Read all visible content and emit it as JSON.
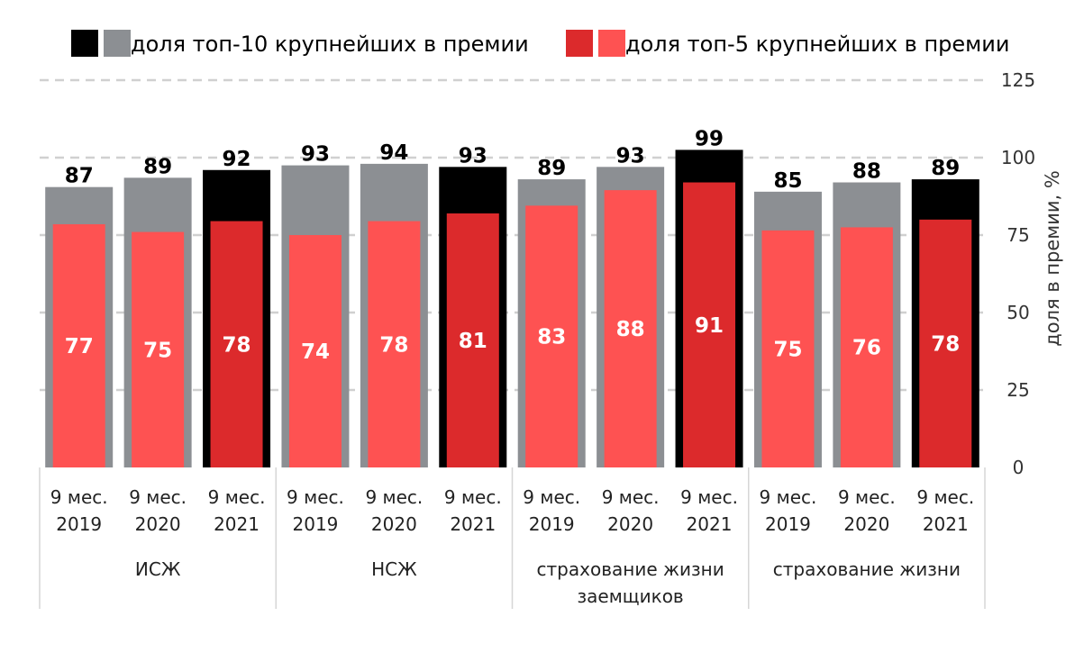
{
  "chart_data": {
    "type": "bar",
    "title": "",
    "ylabel": "доля в премии, %",
    "ylim": [
      0,
      125
    ],
    "yticks": [
      0,
      25,
      50,
      75,
      100,
      125
    ],
    "y_axis_side": "right",
    "grid": "dashed horizontal",
    "legend_position": "top",
    "legend": [
      {
        "label": "доля топ-10 крупнейших в премии",
        "colors": [
          "#000000",
          "#8c8f93"
        ]
      },
      {
        "label": "доля топ-5 крупнейших в премии",
        "colors": [
          "#dc2a2c",
          "#fe5252"
        ]
      }
    ],
    "categories": [
      {
        "group": "ИСЖ",
        "line1": "9 мес.",
        "line2": "2019",
        "highlight": false
      },
      {
        "group": "ИСЖ",
        "line1": "9 мес.",
        "line2": "2020",
        "highlight": false
      },
      {
        "group": "ИСЖ",
        "line1": "9 мес.",
        "line2": "2021",
        "highlight": true
      },
      {
        "group": "НСЖ",
        "line1": "9 мес.",
        "line2": "2019",
        "highlight": false
      },
      {
        "group": "НСЖ",
        "line1": "9 мес.",
        "line2": "2020",
        "highlight": false
      },
      {
        "group": "НСЖ",
        "line1": "9 мес.",
        "line2": "2021",
        "highlight": true
      },
      {
        "group": "страхование жизни заемщиков",
        "line1": "9 мес.",
        "line2": "2019",
        "highlight": false
      },
      {
        "group": "страхование жизни заемщиков",
        "line1": "9 мес.",
        "line2": "2020",
        "highlight": false
      },
      {
        "group": "страхование жизни заемщиков",
        "line1": "9 мес.",
        "line2": "2021",
        "highlight": true
      },
      {
        "group": "страхование жизни",
        "line1": "9 мес.",
        "line2": "2019",
        "highlight": false
      },
      {
        "group": "страхование жизни",
        "line1": "9 мес.",
        "line2": "2020",
        "highlight": false
      },
      {
        "group": "страхование жизни",
        "line1": "9 мес.",
        "line2": "2021",
        "highlight": true
      }
    ],
    "groups": [
      {
        "lines": [
          "ИСЖ"
        ],
        "count": 3
      },
      {
        "lines": [
          "НСЖ"
        ],
        "count": 3
      },
      {
        "lines": [
          "страхование жизни",
          "заемщиков"
        ],
        "count": 3
      },
      {
        "lines": [
          "страхование жизни"
        ],
        "count": 3
      }
    ],
    "series": [
      {
        "name": "доля топ-10 крупнейших в премии",
        "values": [
          87,
          89,
          92,
          93,
          94,
          93,
          89,
          93,
          99,
          85,
          88,
          89
        ],
        "bar_heights": [
          90.5,
          93.5,
          96,
          97.5,
          98,
          97,
          93,
          97,
          102.5,
          89,
          92,
          93
        ],
        "color": "#8c8f93",
        "highlight_color": "#000000"
      },
      {
        "name": "доля топ-5 крупнейших в премии",
        "values": [
          77,
          75,
          78,
          74,
          78,
          81,
          83,
          88,
          91,
          75,
          76,
          78
        ],
        "bar_heights": [
          78.5,
          76,
          79.5,
          75,
          79.5,
          82,
          84.5,
          89.5,
          92,
          76.5,
          77.5,
          80
        ],
        "color": "#fe5252",
        "highlight_color": "#dc2a2c"
      }
    ]
  }
}
